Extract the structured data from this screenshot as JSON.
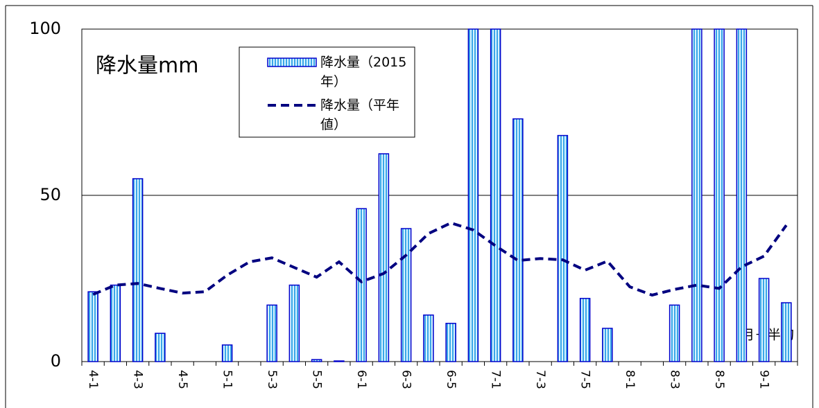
{
  "chart_data": {
    "type": "bar",
    "title": "降水量mm",
    "x_label": "月－半旬",
    "categories": [
      "4-1",
      null,
      "4-3",
      null,
      "4-5",
      null,
      "5-1",
      null,
      "5-3",
      null,
      "5-5",
      null,
      "6-1",
      null,
      "6-3",
      null,
      "6-5",
      null,
      "7-1",
      null,
      "7-3",
      null,
      "7-5",
      null,
      "8-1",
      null,
      "8-3",
      null,
      "8-5",
      null,
      "9-1",
      null
    ],
    "series": [
      {
        "name": "降水量（2015年）",
        "type": "bar",
        "color": "#0000cc",
        "values": [
          21,
          23,
          55,
          8.5,
          0,
          0,
          5,
          0,
          17,
          23,
          0.6,
          0.2,
          46,
          62.5,
          40,
          14,
          11.5,
          100,
          100,
          73,
          0,
          68,
          19,
          10,
          0,
          0,
          17,
          100,
          100,
          100,
          25,
          17.7
        ]
      },
      {
        "name": "降水量（平年値）",
        "type": "line",
        "color": "#000080",
        "dashed": true,
        "values": [
          20.2,
          23,
          23.5,
          22,
          20.6,
          21,
          26,
          30,
          31.2,
          28.3,
          25.4,
          30,
          24,
          26.5,
          32,
          38.5,
          41.7,
          39.6,
          34.8,
          30.4,
          31,
          30.6,
          27.5,
          30.2,
          22.5,
          20,
          21.7,
          23,
          22,
          28.5,
          31.7,
          41
        ]
      }
    ],
    "ylim": [
      0,
      100
    ],
    "yticks": [
      0,
      50,
      100
    ],
    "grid": true
  }
}
